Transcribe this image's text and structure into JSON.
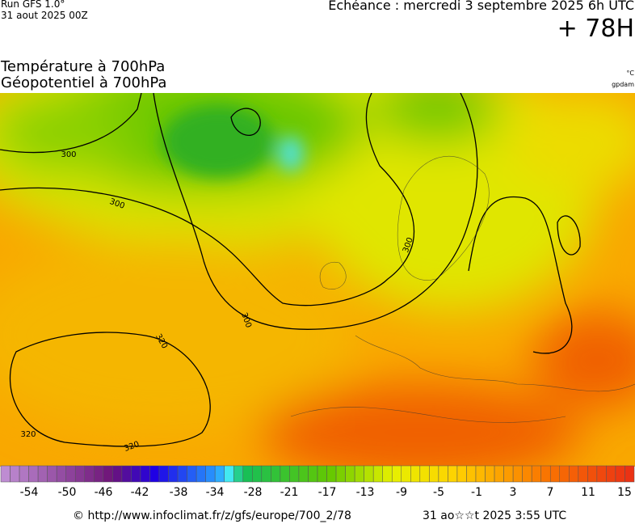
{
  "header": {
    "run": "Run GFS 1.0°",
    "run_date": "31 aout 2025 00Z",
    "forecast": "Echéance : mercredi 3 septembre 2025 6h UTC",
    "lead": "+ 78H",
    "title_1": "Température à 700hPa",
    "title_2": "Géopotentiel à 700hPa",
    "unit_1": "°C",
    "unit_2": "gpdam"
  },
  "map": {
    "contour_labels": [
      300,
      300,
      300,
      300,
      320,
      320,
      320
    ]
  },
  "legend": {
    "ticks": [
      -54,
      -50,
      -46,
      -42,
      -38,
      -34,
      -28,
      -21,
      -17,
      -13,
      -9,
      -5,
      -1,
      3,
      7,
      11,
      15
    ]
  },
  "footer": {
    "source": "© http://www.infoclimat.fr/z/gfs/europe/700_2/78",
    "generated": "31 ao☆☆t 2025  3:55 UTC"
  }
}
